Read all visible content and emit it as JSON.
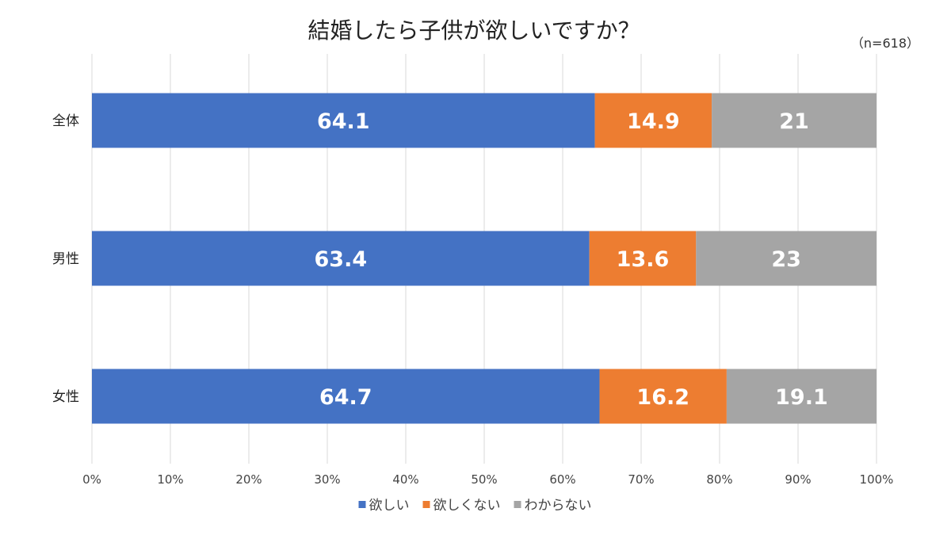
{
  "chart_data": {
    "type": "bar",
    "orientation": "horizontal",
    "stacked": true,
    "title": "結婚したら子供が欲しいですか？",
    "annotation": "（n=618）",
    "categories": [
      "全体",
      "男性",
      "女性"
    ],
    "series": [
      {
        "name": "欲しい",
        "color": "#4472C4",
        "values": [
          64.1,
          63.4,
          64.7
        ],
        "labels": [
          "64.1",
          "63.4",
          "64.7"
        ]
      },
      {
        "name": "欲しくない",
        "color": "#ED7D31",
        "values": [
          14.9,
          13.6,
          16.2
        ],
        "labels": [
          "14.9",
          "13.6",
          "16.2"
        ]
      },
      {
        "name": "わからない",
        "color": "#A5A5A5",
        "values": [
          21,
          23,
          19.1
        ],
        "labels": [
          "21",
          "23",
          "19.1"
        ]
      }
    ],
    "xlim": [
      0,
      100
    ],
    "xticks": [
      "0%",
      "10%",
      "20%",
      "30%",
      "40%",
      "50%",
      "60%",
      "70%",
      "80%",
      "90%",
      "100%"
    ],
    "xlabel": "",
    "ylabel": "",
    "grid": true,
    "legend_position": "bottom"
  }
}
